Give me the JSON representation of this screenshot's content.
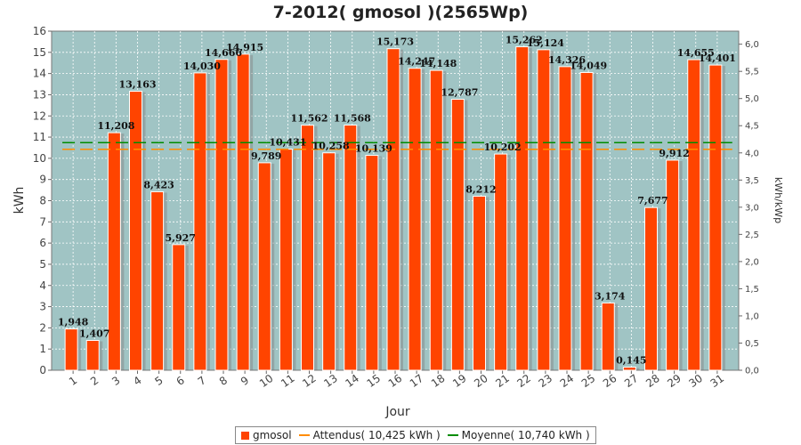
{
  "chart_data": {
    "type": "bar",
    "title": "7-2012( gmosol )(2565Wp)",
    "xlabel": "Jour",
    "ylabel": "kWh",
    "y2label": "kWh/kWp",
    "ylim": [
      0,
      16
    ],
    "y2lim": [
      0,
      6.24
    ],
    "yticks": [
      "0",
      "1",
      "2",
      "3",
      "4",
      "5",
      "6",
      "7",
      "8",
      "9",
      "10",
      "11",
      "12",
      "13",
      "14",
      "15",
      "16"
    ],
    "y2ticks": [
      "0,0",
      "0,5",
      "1,0",
      "1,5",
      "2,0",
      "2,5",
      "3,0",
      "3,5",
      "4,0",
      "4,5",
      "5,0",
      "5,5",
      "6,0"
    ],
    "categories": [
      "1",
      "2",
      "3",
      "4",
      "5",
      "6",
      "7",
      "8",
      "9",
      "10",
      "11",
      "12",
      "13",
      "14",
      "15",
      "16",
      "17",
      "18",
      "19",
      "20",
      "21",
      "22",
      "23",
      "24",
      "25",
      "26",
      "27",
      "28",
      "29",
      "30",
      "31"
    ],
    "series": [
      {
        "name": "gmosol",
        "color": "#ff4400",
        "values": [
          1.948,
          1.407,
          11.208,
          13.163,
          8.423,
          5.927,
          14.03,
          14.666,
          14.915,
          9.789,
          10.431,
          11.562,
          10.258,
          11.568,
          10.139,
          15.173,
          14.247,
          14.148,
          12.787,
          8.212,
          10.202,
          15.262,
          15.124,
          14.326,
          14.049,
          3.174,
          0.145,
          7.677,
          9.912,
          14.655,
          14.401
        ],
        "labels": [
          "1,948",
          "1,407",
          "11,208",
          "13,163",
          "8,423",
          "5,927",
          "14,030",
          "14,666",
          "14,915",
          "9,789",
          "10,431",
          "11,562",
          "10,258",
          "11,568",
          "10,139",
          "15,173",
          "14,247",
          "14,148",
          "12,787",
          "8,212",
          "10,202",
          "15,262",
          "15,124",
          "14,326",
          "14,049",
          "3,174",
          "0,145",
          "7,677",
          "9,912",
          "14,655",
          "14,401"
        ]
      }
    ],
    "reference_lines": [
      {
        "name": "Attendus",
        "value": 10.425,
        "color": "#ff8c00",
        "legend": "Attendus( 10,425 kWh )"
      },
      {
        "name": "Moyenne",
        "value": 10.74,
        "color": "#008c00",
        "legend": "Moyenne( 10,740 kWh )"
      }
    ],
    "grid": true,
    "legend_position": "bottom-center",
    "plot_background": "#a0c4c4"
  }
}
